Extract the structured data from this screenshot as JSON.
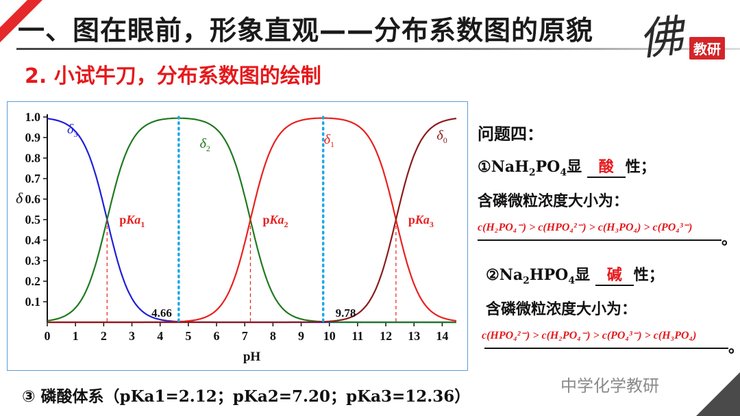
{
  "header": {
    "title": "一、图在眼前，形象直观——分布系数图的原貌",
    "subtitle": "2. 小试牛刀，分布系数图的绘制",
    "logo_script": "佛",
    "logo_stamp": "教研"
  },
  "colors": {
    "accent": "#e5282a",
    "delta3": "#1f1fd6",
    "delta2": "#1e7a1e",
    "delta1": "#e8201f",
    "delta0": "#8b1a1a",
    "dotted": "#1ea6e6"
  },
  "chart_data": {
    "type": "line",
    "xlabel": "pH",
    "ylabel": "δ",
    "xlim": [
      0,
      14.5
    ],
    "ylim": [
      0,
      1.0
    ],
    "xticks": [
      "0",
      "1",
      "2",
      "3",
      "4",
      "5",
      "6",
      "7",
      "8",
      "9",
      "10",
      "11",
      "12",
      "13",
      "14"
    ],
    "yticks": [
      "0.1",
      "0.2",
      "0.3",
      "0.4",
      "0.5",
      "0.6",
      "0.7",
      "0.8",
      "0.9",
      "1.0"
    ],
    "pKa": [
      2.12,
      7.2,
      12.36
    ],
    "series": [
      {
        "name": "δ3",
        "label": "δ",
        "sub": "3",
        "color": "#1f1fd6"
      },
      {
        "name": "δ2",
        "label": "δ",
        "sub": "2",
        "color": "#1e7a1e"
      },
      {
        "name": "δ1",
        "label": "δ",
        "sub": "1",
        "color": "#e8201f"
      },
      {
        "name": "δ0",
        "label": "δ",
        "sub": "0",
        "color": "#8b1a1a"
      }
    ],
    "pka_labels": [
      {
        "text": "pKa",
        "sub": "1",
        "x": 2.12
      },
      {
        "text": "pKa",
        "sub": "2",
        "x": 7.2
      },
      {
        "text": "pKa",
        "sub": "3",
        "x": 12.36
      }
    ],
    "dotted_lines": [
      4.66,
      9.78
    ],
    "dotted_labels": [
      "4.66",
      "9.78"
    ]
  },
  "right": {
    "heading": "问题四：",
    "q1_prefix": "①NaH",
    "q1_mid": "PO",
    "q1_suffix": "显",
    "q1_answer": "酸",
    "q1_tail": "性；",
    "order_heading_1": "含磷微粒浓度大小为：",
    "order_1": "c(H₂PO₄⁻) > c(HPO₄²⁻) > c(H₃PO₄) > c(PO₄³⁻)",
    "q2_prefix": "②Na",
    "q2_mid": "HPO",
    "q2_suffix": "显",
    "q2_answer": "碱",
    "q2_tail": "性；",
    "order_heading_2": "含磷微粒浓度大小为：",
    "order_2": "c(HPO₄²⁻) > c(H₂PO₄⁻) > c(PO₄³⁻) > c(H₃PO₄)",
    "period": "。"
  },
  "footer": {
    "system": "③ 磷酸体系（",
    "system_vals": "pKa1=2.12；pKa2=7.20；pKa3=12.36）",
    "watermark": "中学化学教研"
  }
}
